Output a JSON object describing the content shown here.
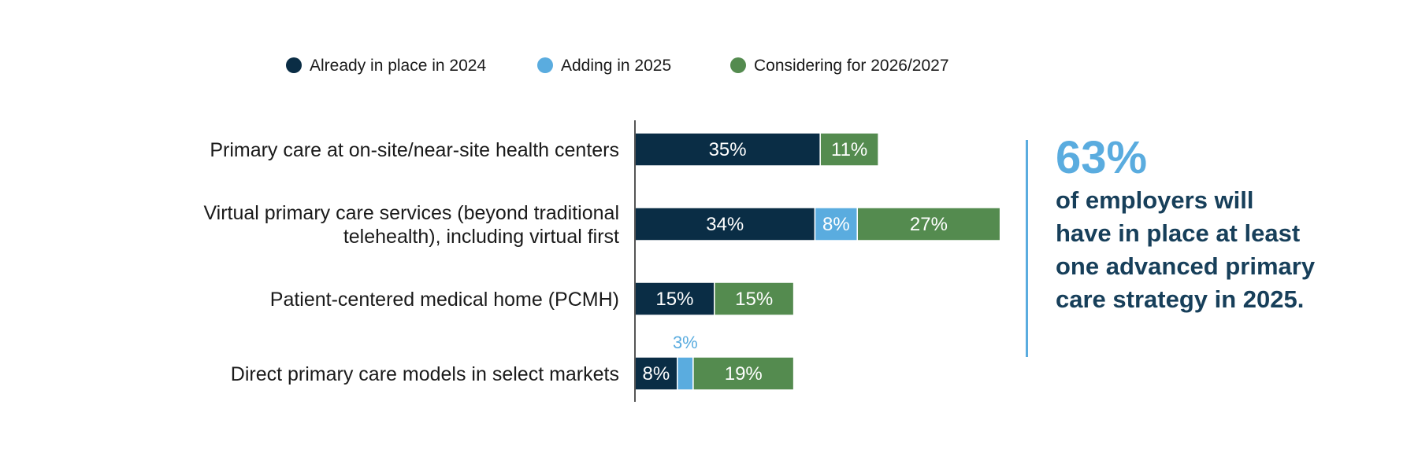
{
  "colors": {
    "already": "#0a2d45",
    "adding": "#5aacdf",
    "considering": "#548b4f",
    "axis": "#555555",
    "callout_stat": "#5aacdf",
    "callout_text": "#173f5a",
    "callout_rule": "#5aacdf"
  },
  "chart_data": {
    "type": "bar",
    "orientation": "horizontal",
    "stacked": true,
    "categories": [
      [
        "Primary care at on-site/near-site health centers"
      ],
      [
        "Virtual primary care services (beyond traditional",
        "telehealth), including virtual first"
      ],
      [
        "Patient-centered medical home (PCMH)"
      ],
      [
        "Direct primary care models in select markets"
      ]
    ],
    "series": [
      {
        "name": "Already in place in 2024",
        "values": [
          35,
          34,
          15,
          8
        ],
        "labels": [
          "35%",
          "34%",
          "15%",
          "8%"
        ]
      },
      {
        "name": "Adding in 2025",
        "values": [
          0,
          8,
          0,
          3
        ],
        "labels": [
          "",
          "8%",
          "",
          "3%"
        ]
      },
      {
        "name": "Considering for 2026/2027",
        "values": [
          11,
          27,
          15,
          19
        ],
        "labels": [
          "11%",
          "27%",
          "15%",
          "19%"
        ]
      }
    ],
    "legend_position": "top",
    "grid": false
  },
  "callout": {
    "stat": "63%",
    "text": "of employers will have in place at least one advanced primary care strategy in 2025."
  }
}
